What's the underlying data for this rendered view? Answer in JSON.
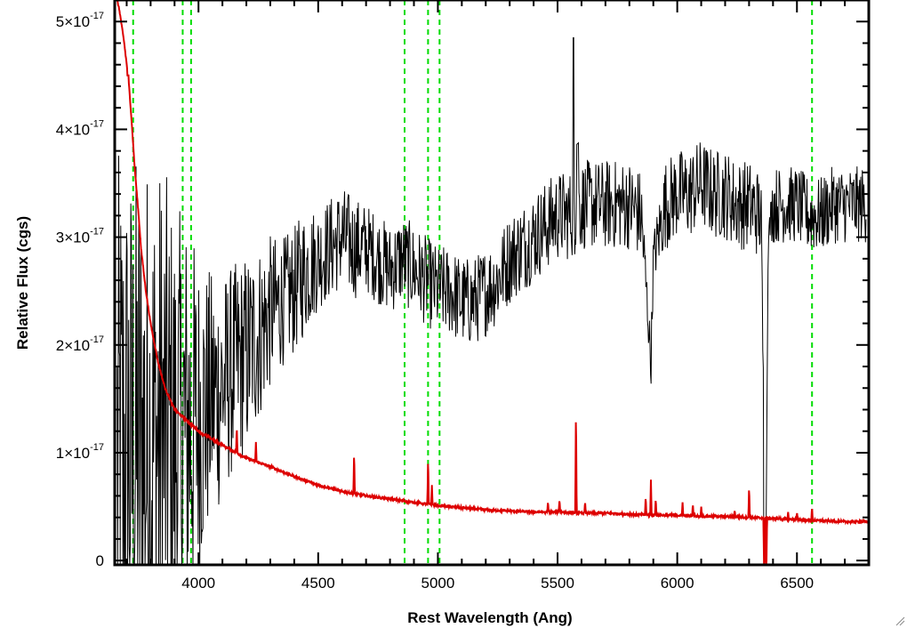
{
  "chart_data": {
    "type": "line",
    "xlabel": "Rest Wavelength (Ang)",
    "ylabel": "Relative Flux (cgs)",
    "xlim": [
      3650,
      6800
    ],
    "ylim": [
      -0.04,
      5.2
    ],
    "y_unit_exponent": "-17",
    "x_ticks": [
      4000,
      4500,
      5000,
      5500,
      6000,
      6500
    ],
    "x_tick_labels": [
      "4000",
      "4500",
      "5000",
      "5500",
      "6000",
      "6500"
    ],
    "y_ticks": [
      0,
      1,
      2,
      3,
      4,
      5
    ],
    "y_tick_labels": [
      "0",
      "1×10",
      "2×10",
      "3×10",
      "4×10",
      "5×10"
    ],
    "reference_lines": {
      "style": "dashed",
      "color": "#00dd00",
      "x": [
        3727,
        3934,
        3969,
        4861,
        4959,
        5007,
        6563
      ]
    },
    "series": [
      {
        "color": "#000000",
        "description": "observed spectrum",
        "x": [
          3660,
          3700,
          3730,
          3760,
          3800,
          3850,
          3900,
          3950,
          4000,
          4050,
          4100,
          4150,
          4200,
          4250,
          4300,
          4350,
          4400,
          4450,
          4500,
          4550,
          4600,
          4650,
          4700,
          4750,
          4800,
          4850,
          4900,
          4950,
          5000,
          5050,
          5100,
          5150,
          5200,
          5250,
          5300,
          5350,
          5400,
          5450,
          5500,
          5550,
          5600,
          5650,
          5700,
          5750,
          5800,
          5850,
          5880,
          5890,
          5900,
          5950,
          6000,
          6050,
          6100,
          6150,
          6200,
          6250,
          6300,
          6350,
          6370,
          6380,
          6400,
          6450,
          6500,
          6550,
          6600,
          6650,
          6700,
          6750,
          6790
        ],
        "y": [
          0.9,
          0.9,
          0.9,
          1.0,
          1.0,
          1.1,
          1.1,
          1.2,
          1.3,
          1.5,
          1.6,
          1.8,
          1.9,
          2.1,
          2.3,
          2.4,
          2.5,
          2.7,
          2.8,
          2.9,
          3.0,
          2.9,
          2.9,
          2.8,
          2.7,
          2.8,
          2.7,
          2.6,
          2.5,
          2.5,
          2.4,
          2.4,
          2.5,
          2.6,
          2.8,
          2.9,
          3.0,
          3.1,
          3.2,
          3.2,
          3.3,
          3.3,
          3.3,
          3.3,
          3.3,
          3.2,
          2.2,
          1.8,
          2.8,
          3.3,
          3.4,
          3.4,
          3.5,
          3.4,
          3.4,
          3.3,
          3.3,
          3.2,
          -0.1,
          3.0,
          3.3,
          3.3,
          3.3,
          3.2,
          3.2,
          3.3,
          3.3,
          3.3,
          3.3
        ],
        "noise": [
          2.4,
          2.4,
          2.4,
          2.4,
          2.3,
          2.2,
          1.8,
          1.7,
          1.3,
          1.0,
          0.9,
          0.8,
          0.8,
          0.7,
          0.6,
          0.5,
          0.5,
          0.5,
          0.4,
          0.4,
          0.4,
          0.4,
          0.35,
          0.35,
          0.35,
          0.35,
          0.35,
          0.35,
          0.35,
          0.35,
          0.35,
          0.35,
          0.35,
          0.35,
          0.35,
          0.35,
          0.35,
          0.35,
          0.35,
          0.35,
          0.35,
          0.35,
          0.35,
          0.35,
          0.35,
          0.35,
          0.2,
          0.2,
          0.2,
          0.35,
          0.35,
          0.35,
          0.35,
          0.35,
          0.35,
          0.35,
          0.35,
          0.35,
          0.05,
          0.05,
          0.3,
          0.3,
          0.3,
          0.3,
          0.3,
          0.3,
          0.3,
          0.3,
          0.3
        ]
      },
      {
        "color": "#dd0000",
        "description": "model / error spectrum",
        "x": [
          3650,
          3670,
          3690,
          3700,
          3710,
          3720,
          3735,
          3750,
          3760,
          3780,
          3800,
          3830,
          3860,
          3900,
          3950,
          4000,
          4100,
          4200,
          4300,
          4400,
          4500,
          4600,
          4700,
          4800,
          4900,
          5000,
          5100,
          5200,
          5300,
          5400,
          5500,
          5600,
          5700,
          5800,
          5900,
          6000,
          6100,
          6200,
          6300,
          6400,
          6500,
          6600,
          6700,
          6800
        ],
        "y": [
          5.3,
          5.1,
          4.8,
          4.6,
          4.4,
          4.1,
          3.6,
          3.2,
          2.9,
          2.5,
          2.2,
          1.85,
          1.6,
          1.4,
          1.3,
          1.2,
          1.07,
          0.95,
          0.87,
          0.78,
          0.7,
          0.64,
          0.6,
          0.57,
          0.54,
          0.51,
          0.49,
          0.47,
          0.46,
          0.45,
          0.45,
          0.44,
          0.44,
          0.43,
          0.42,
          0.42,
          0.41,
          0.41,
          0.4,
          0.39,
          0.38,
          0.37,
          0.36,
          0.36
        ],
        "emission_lines": [
          {
            "x": 3705,
            "peak": 4.5
          },
          {
            "x": 4160,
            "peak": 1.25
          },
          {
            "x": 4240,
            "peak": 1.1
          },
          {
            "x": 4650,
            "peak": 1.02
          },
          {
            "x": 4959,
            "peak": 0.97
          },
          {
            "x": 4975,
            "peak": 0.7
          },
          {
            "x": 5460,
            "peak": 0.55
          },
          {
            "x": 5508,
            "peak": 0.57
          },
          {
            "x": 5577,
            "peak": 1.45
          },
          {
            "x": 5615,
            "peak": 0.55
          },
          {
            "x": 5868,
            "peak": 0.6
          },
          {
            "x": 5890,
            "peak": 0.75
          },
          {
            "x": 5910,
            "peak": 0.58
          },
          {
            "x": 6022,
            "peak": 0.54
          },
          {
            "x": 6065,
            "peak": 0.53
          },
          {
            "x": 6100,
            "peak": 0.5
          },
          {
            "x": 6240,
            "peak": 0.47
          },
          {
            "x": 6300,
            "peak": 0.7
          },
          {
            "x": 6363,
            "peak": -0.2
          },
          {
            "x": 6372,
            "peak": -0.2
          },
          {
            "x": 6463,
            "peak": 0.45
          },
          {
            "x": 6500,
            "peak": 0.45
          },
          {
            "x": 6563,
            "peak": 0.5
          }
        ]
      }
    ]
  }
}
